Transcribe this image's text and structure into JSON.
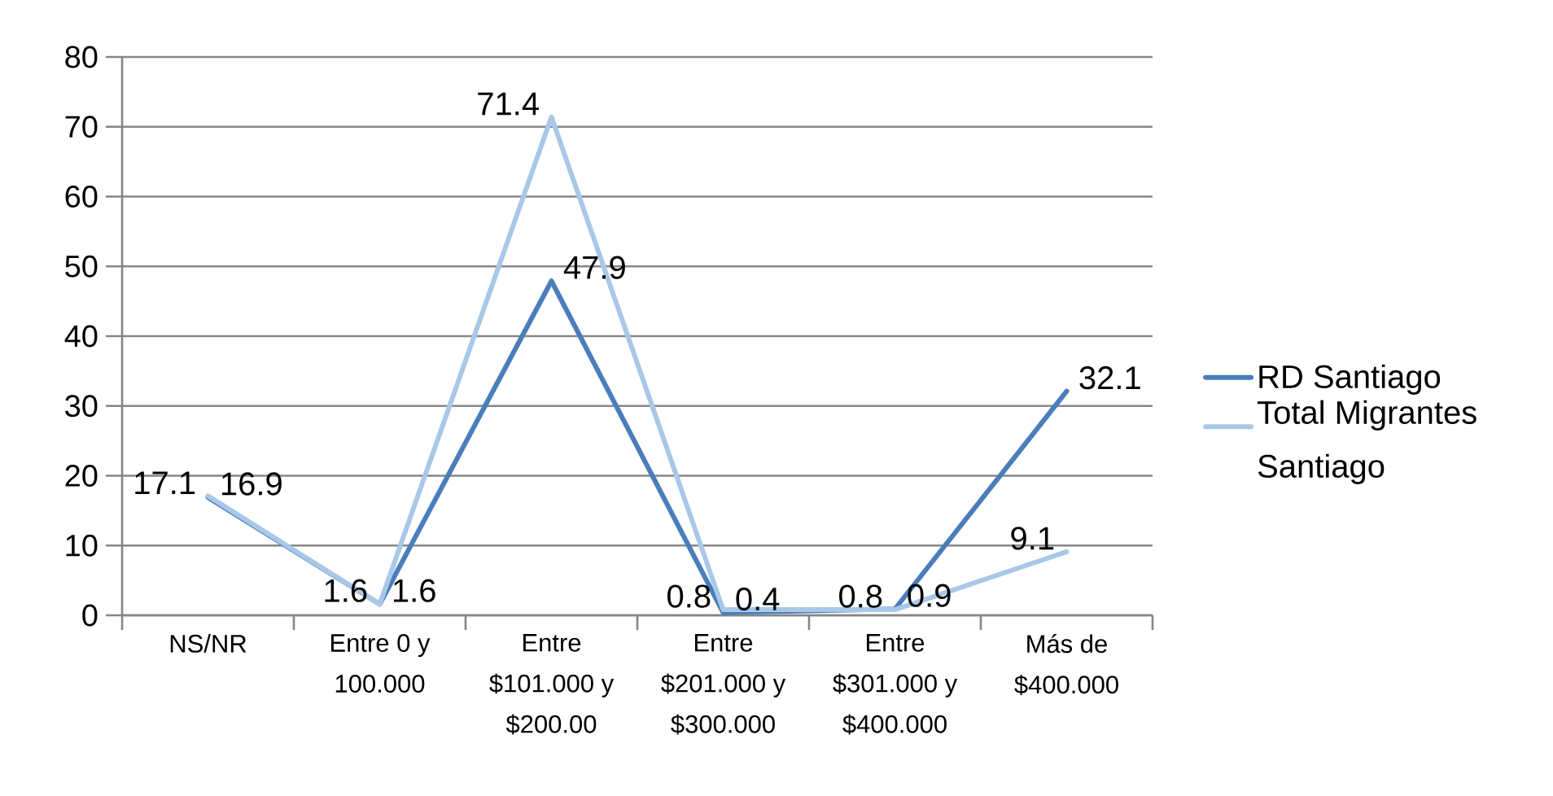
{
  "chart_data": {
    "type": "line",
    "categories": [
      "NS/NR",
      "Entre 0 y 100.000",
      "Entre $101.000 y $200.00",
      "Entre $201.000 y $300.000",
      "Entre $301.000 y $400.000",
      "Más de $400.000"
    ],
    "series": [
      {
        "name": "RD Santiago",
        "color": "#4a7ebb",
        "values": [
          16.9,
          1.6,
          47.9,
          0.4,
          0.9,
          32.1
        ]
      },
      {
        "name": "Total Migrantes Santiago",
        "color": "#a9c8e8",
        "values": [
          17.1,
          1.6,
          71.4,
          0.8,
          0.8,
          9.1
        ]
      }
    ],
    "ylim": [
      0,
      80
    ],
    "yticks": [
      0,
      10,
      20,
      30,
      40,
      50,
      60,
      70,
      80
    ],
    "grid": "y",
    "legend": "right",
    "data_labels": true,
    "marker": "none",
    "line_style": "solid"
  }
}
